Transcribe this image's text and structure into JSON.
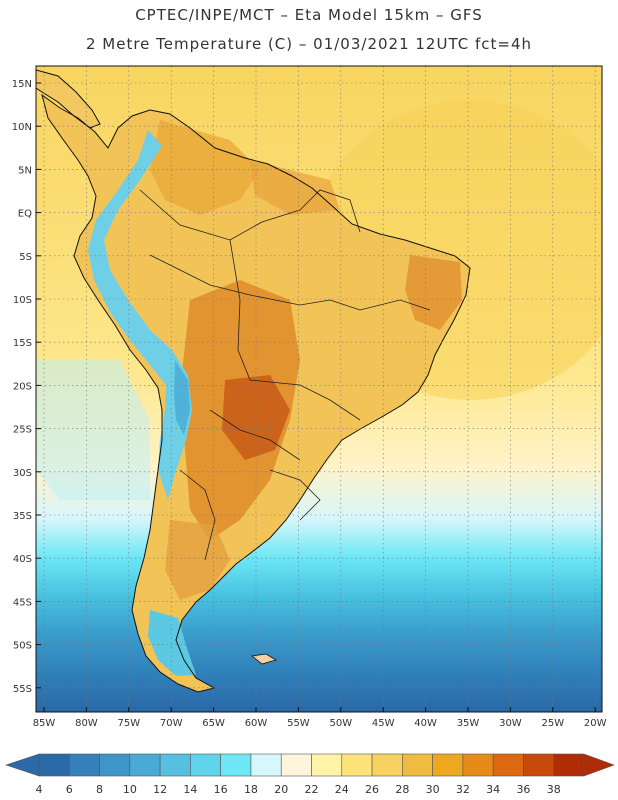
{
  "title": {
    "line1": "CPTEC/INPE/MCT –  Eta Model 15km – GFS",
    "line2": "2 Metre Temperature (C) – 01/03/2021 12UTC fct=4h"
  },
  "axes": {
    "lat_labels": [
      "15N",
      "10N",
      "5N",
      "EQ",
      "5S",
      "10S",
      "15S",
      "20S",
      "25S",
      "30S",
      "35S",
      "40S",
      "45S",
      "50S",
      "55S"
    ],
    "lon_labels": [
      "85W",
      "80W",
      "75W",
      "70W",
      "65W",
      "60W",
      "55W",
      "50W",
      "45W",
      "40W",
      "35W",
      "30W",
      "25W",
      "20W"
    ]
  },
  "colorbar": {
    "labels": [
      "4",
      "6",
      "8",
      "10",
      "12",
      "14",
      "16",
      "18",
      "20",
      "22",
      "24",
      "26",
      "28",
      "30",
      "32",
      "34",
      "36",
      "38"
    ],
    "colors": [
      "#2a6aa8",
      "#3580b8",
      "#3d95c8",
      "#48aad5",
      "#55c0e0",
      "#5fd5ec",
      "#6ee8f6",
      "#d6f8fc",
      "#fff5dc",
      "#fff3a8",
      "#fde478",
      "#f8d260",
      "#f0bc40",
      "#eea820",
      "#e88a18",
      "#dc6810",
      "#c84a0a",
      "#b02c06"
    ]
  }
}
